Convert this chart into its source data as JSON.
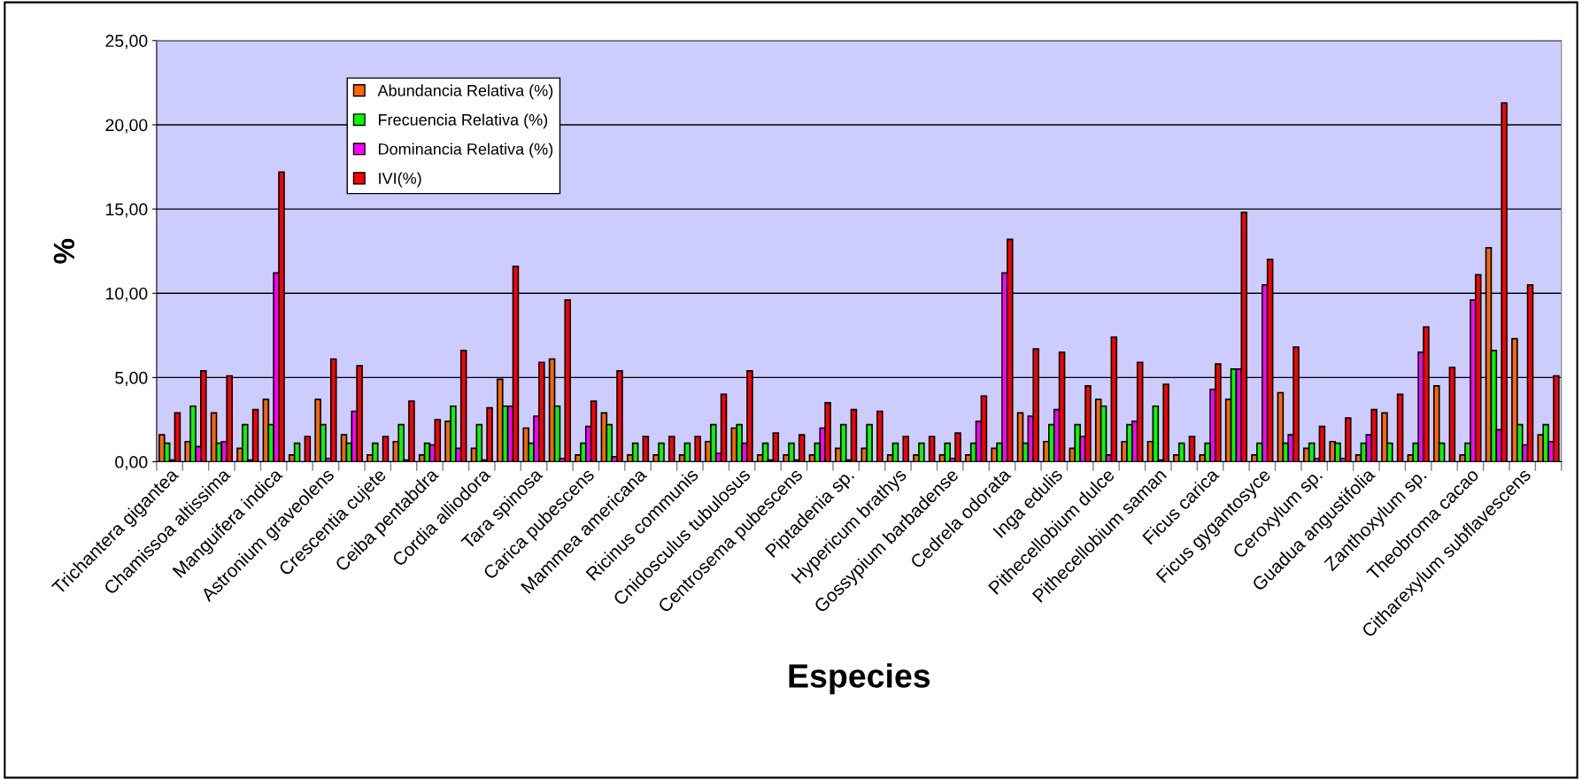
{
  "chart_data": {
    "type": "bar",
    "xlabel": "Especies",
    "ylabel": "%",
    "categories": [
      "Trichantera gigantea",
      null,
      "Chamissoa altissima",
      null,
      "Manguifera indica",
      null,
      "Astronium graveolens",
      null,
      "Crescentia cujete",
      null,
      "Ceiba pentabdra",
      null,
      "Cordia alliodora",
      null,
      "Tara spinosa",
      null,
      "Carica pubescens",
      null,
      "Mammea americana",
      null,
      "Ricinus communis",
      null,
      "Cnidosculus tubulosus",
      null,
      "Centrosema pubescens",
      null,
      "Piptadenia sp.",
      null,
      "Hypericum brathys",
      null,
      "Gossypium barbadense",
      null,
      "Cedrela odorata",
      null,
      "Inga edulis",
      null,
      "Pithecellobium dulce",
      null,
      "Pithecellobium saman",
      null,
      "Ficus carica",
      null,
      "Ficus gygantosyce",
      null,
      "Ceroxylum sp.",
      null,
      "Guadua angustifolia",
      null,
      "Zanthoxylum sp.",
      null,
      "Theobroma cacao",
      null,
      "Citharexylum subflavescens",
      null
    ],
    "series": [
      {
        "name": "Abundancia Relativa (%)",
        "color": "#ff6600",
        "values": [
          1.6,
          1.2,
          2.9,
          0.8,
          3.7,
          0.4,
          3.7,
          1.6,
          0.4,
          1.2,
          0.4,
          2.4,
          0.8,
          4.9,
          2.0,
          6.1,
          0.4,
          2.9,
          0.4,
          0.4,
          0.4,
          1.2,
          2.0,
          0.4,
          0.4,
          0.4,
          0.8,
          0.8,
          0.4,
          0.4,
          0.4,
          0.4,
          0.8,
          2.9,
          1.2,
          0.8,
          3.7,
          1.2,
          1.2,
          0.4,
          0.4,
          3.7,
          0.4,
          4.1,
          0.8,
          1.2,
          0.4,
          2.9,
          0.4,
          4.5,
          0.4,
          12.7,
          7.3,
          1.6
        ]
      },
      {
        "name": "Frecuencia Relativa (%)",
        "color": "#00ff00",
        "values": [
          1.1,
          3.3,
          1.1,
          2.2,
          2.2,
          1.1,
          2.2,
          1.1,
          1.1,
          2.2,
          1.1,
          3.3,
          2.2,
          3.3,
          1.1,
          3.3,
          1.1,
          2.2,
          1.1,
          1.1,
          1.1,
          2.2,
          2.2,
          1.1,
          1.1,
          1.1,
          2.2,
          2.2,
          1.1,
          1.1,
          1.1,
          1.1,
          1.1,
          1.1,
          2.2,
          2.2,
          3.3,
          2.2,
          3.3,
          1.1,
          1.1,
          5.5,
          1.1,
          1.1,
          1.1,
          1.1,
          1.1,
          1.1,
          1.1,
          1.1,
          1.1,
          6.6,
          2.2,
          2.2
        ]
      },
      {
        "name": "Dominancia Relativa (%)",
        "color": "#ff00ff",
        "values": [
          0.1,
          0.9,
          1.2,
          0.1,
          11.2,
          0.0,
          0.2,
          3.0,
          0.0,
          0.1,
          1.0,
          0.8,
          0.1,
          3.3,
          2.7,
          0.2,
          2.1,
          0.3,
          0.0,
          0.0,
          0.0,
          0.5,
          1.1,
          0.1,
          0.1,
          2.0,
          0.1,
          0.0,
          0.0,
          0.0,
          0.2,
          2.4,
          11.2,
          2.7,
          3.1,
          1.5,
          0.4,
          2.4,
          0.1,
          0.0,
          4.3,
          5.5,
          10.5,
          1.6,
          0.2,
          0.2,
          1.6,
          0.0,
          6.5,
          0.0,
          9.6,
          1.9,
          1.0,
          1.2
        ]
      },
      {
        "name": "IVI(%)",
        "color": "#ff0000",
        "values": [
          2.9,
          5.4,
          5.1,
          3.1,
          17.2,
          1.5,
          6.1,
          5.7,
          1.5,
          3.6,
          2.5,
          6.6,
          3.2,
          11.6,
          5.9,
          9.6,
          3.6,
          5.4,
          1.5,
          1.5,
          1.5,
          4.0,
          5.4,
          1.7,
          1.6,
          3.5,
          3.1,
          3.0,
          1.5,
          1.5,
          1.7,
          3.9,
          13.2,
          6.7,
          6.5,
          4.5,
          7.4,
          5.9,
          4.6,
          1.5,
          5.8,
          14.8,
          12.0,
          6.8,
          2.1,
          2.6,
          3.1,
          4.0,
          8.0,
          5.6,
          11.1,
          21.3,
          10.5,
          5.1
        ]
      }
    ],
    "ylim": [
      0,
      25
    ],
    "yticks": [
      {
        "value": 0,
        "label": "0,00"
      },
      {
        "value": 5,
        "label": "5,00"
      },
      {
        "value": 10,
        "label": "10,00"
      },
      {
        "value": 15,
        "label": "15,00"
      },
      {
        "value": 20,
        "label": "20,00"
      },
      {
        "value": 25,
        "label": "25,00"
      }
    ],
    "grid": "y",
    "legend": "top left"
  }
}
